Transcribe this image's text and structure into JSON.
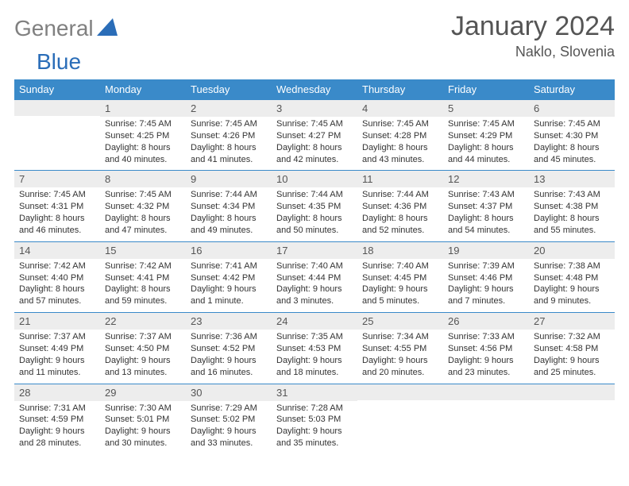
{
  "brand": {
    "part1": "General",
    "part2": "Blue"
  },
  "title": "January 2024",
  "location": "Naklo, Slovenia",
  "colors": {
    "header_bg": "#3a8ac9",
    "header_text": "#ffffff",
    "daynum_bg": "#ededed",
    "border": "#3a8ac9",
    "logo_gray": "#808080",
    "logo_blue": "#2a6db8",
    "body_text": "#333333"
  },
  "typography": {
    "title_fontsize": 34,
    "location_fontsize": 18,
    "dow_fontsize": 13,
    "daynum_fontsize": 13,
    "cell_fontsize": 11
  },
  "days_of_week": [
    "Sunday",
    "Monday",
    "Tuesday",
    "Wednesday",
    "Thursday",
    "Friday",
    "Saturday"
  ],
  "weeks": [
    [
      {
        "n": "",
        "lines": [
          "",
          "",
          "",
          ""
        ]
      },
      {
        "n": "1",
        "lines": [
          "Sunrise: 7:45 AM",
          "Sunset: 4:25 PM",
          "Daylight: 8 hours",
          "and 40 minutes."
        ]
      },
      {
        "n": "2",
        "lines": [
          "Sunrise: 7:45 AM",
          "Sunset: 4:26 PM",
          "Daylight: 8 hours",
          "and 41 minutes."
        ]
      },
      {
        "n": "3",
        "lines": [
          "Sunrise: 7:45 AM",
          "Sunset: 4:27 PM",
          "Daylight: 8 hours",
          "and 42 minutes."
        ]
      },
      {
        "n": "4",
        "lines": [
          "Sunrise: 7:45 AM",
          "Sunset: 4:28 PM",
          "Daylight: 8 hours",
          "and 43 minutes."
        ]
      },
      {
        "n": "5",
        "lines": [
          "Sunrise: 7:45 AM",
          "Sunset: 4:29 PM",
          "Daylight: 8 hours",
          "and 44 minutes."
        ]
      },
      {
        "n": "6",
        "lines": [
          "Sunrise: 7:45 AM",
          "Sunset: 4:30 PM",
          "Daylight: 8 hours",
          "and 45 minutes."
        ]
      }
    ],
    [
      {
        "n": "7",
        "lines": [
          "Sunrise: 7:45 AM",
          "Sunset: 4:31 PM",
          "Daylight: 8 hours",
          "and 46 minutes."
        ]
      },
      {
        "n": "8",
        "lines": [
          "Sunrise: 7:45 AM",
          "Sunset: 4:32 PM",
          "Daylight: 8 hours",
          "and 47 minutes."
        ]
      },
      {
        "n": "9",
        "lines": [
          "Sunrise: 7:44 AM",
          "Sunset: 4:34 PM",
          "Daylight: 8 hours",
          "and 49 minutes."
        ]
      },
      {
        "n": "10",
        "lines": [
          "Sunrise: 7:44 AM",
          "Sunset: 4:35 PM",
          "Daylight: 8 hours",
          "and 50 minutes."
        ]
      },
      {
        "n": "11",
        "lines": [
          "Sunrise: 7:44 AM",
          "Sunset: 4:36 PM",
          "Daylight: 8 hours",
          "and 52 minutes."
        ]
      },
      {
        "n": "12",
        "lines": [
          "Sunrise: 7:43 AM",
          "Sunset: 4:37 PM",
          "Daylight: 8 hours",
          "and 54 minutes."
        ]
      },
      {
        "n": "13",
        "lines": [
          "Sunrise: 7:43 AM",
          "Sunset: 4:38 PM",
          "Daylight: 8 hours",
          "and 55 minutes."
        ]
      }
    ],
    [
      {
        "n": "14",
        "lines": [
          "Sunrise: 7:42 AM",
          "Sunset: 4:40 PM",
          "Daylight: 8 hours",
          "and 57 minutes."
        ]
      },
      {
        "n": "15",
        "lines": [
          "Sunrise: 7:42 AM",
          "Sunset: 4:41 PM",
          "Daylight: 8 hours",
          "and 59 minutes."
        ]
      },
      {
        "n": "16",
        "lines": [
          "Sunrise: 7:41 AM",
          "Sunset: 4:42 PM",
          "Daylight: 9 hours",
          "and 1 minute."
        ]
      },
      {
        "n": "17",
        "lines": [
          "Sunrise: 7:40 AM",
          "Sunset: 4:44 PM",
          "Daylight: 9 hours",
          "and 3 minutes."
        ]
      },
      {
        "n": "18",
        "lines": [
          "Sunrise: 7:40 AM",
          "Sunset: 4:45 PM",
          "Daylight: 9 hours",
          "and 5 minutes."
        ]
      },
      {
        "n": "19",
        "lines": [
          "Sunrise: 7:39 AM",
          "Sunset: 4:46 PM",
          "Daylight: 9 hours",
          "and 7 minutes."
        ]
      },
      {
        "n": "20",
        "lines": [
          "Sunrise: 7:38 AM",
          "Sunset: 4:48 PM",
          "Daylight: 9 hours",
          "and 9 minutes."
        ]
      }
    ],
    [
      {
        "n": "21",
        "lines": [
          "Sunrise: 7:37 AM",
          "Sunset: 4:49 PM",
          "Daylight: 9 hours",
          "and 11 minutes."
        ]
      },
      {
        "n": "22",
        "lines": [
          "Sunrise: 7:37 AM",
          "Sunset: 4:50 PM",
          "Daylight: 9 hours",
          "and 13 minutes."
        ]
      },
      {
        "n": "23",
        "lines": [
          "Sunrise: 7:36 AM",
          "Sunset: 4:52 PM",
          "Daylight: 9 hours",
          "and 16 minutes."
        ]
      },
      {
        "n": "24",
        "lines": [
          "Sunrise: 7:35 AM",
          "Sunset: 4:53 PM",
          "Daylight: 9 hours",
          "and 18 minutes."
        ]
      },
      {
        "n": "25",
        "lines": [
          "Sunrise: 7:34 AM",
          "Sunset: 4:55 PM",
          "Daylight: 9 hours",
          "and 20 minutes."
        ]
      },
      {
        "n": "26",
        "lines": [
          "Sunrise: 7:33 AM",
          "Sunset: 4:56 PM",
          "Daylight: 9 hours",
          "and 23 minutes."
        ]
      },
      {
        "n": "27",
        "lines": [
          "Sunrise: 7:32 AM",
          "Sunset: 4:58 PM",
          "Daylight: 9 hours",
          "and 25 minutes."
        ]
      }
    ],
    [
      {
        "n": "28",
        "lines": [
          "Sunrise: 7:31 AM",
          "Sunset: 4:59 PM",
          "Daylight: 9 hours",
          "and 28 minutes."
        ]
      },
      {
        "n": "29",
        "lines": [
          "Sunrise: 7:30 AM",
          "Sunset: 5:01 PM",
          "Daylight: 9 hours",
          "and 30 minutes."
        ]
      },
      {
        "n": "30",
        "lines": [
          "Sunrise: 7:29 AM",
          "Sunset: 5:02 PM",
          "Daylight: 9 hours",
          "and 33 minutes."
        ]
      },
      {
        "n": "31",
        "lines": [
          "Sunrise: 7:28 AM",
          "Sunset: 5:03 PM",
          "Daylight: 9 hours",
          "and 35 minutes."
        ]
      },
      {
        "n": "",
        "lines": [
          "",
          "",
          "",
          ""
        ]
      },
      {
        "n": "",
        "lines": [
          "",
          "",
          "",
          ""
        ]
      },
      {
        "n": "",
        "lines": [
          "",
          "",
          "",
          ""
        ]
      }
    ]
  ]
}
